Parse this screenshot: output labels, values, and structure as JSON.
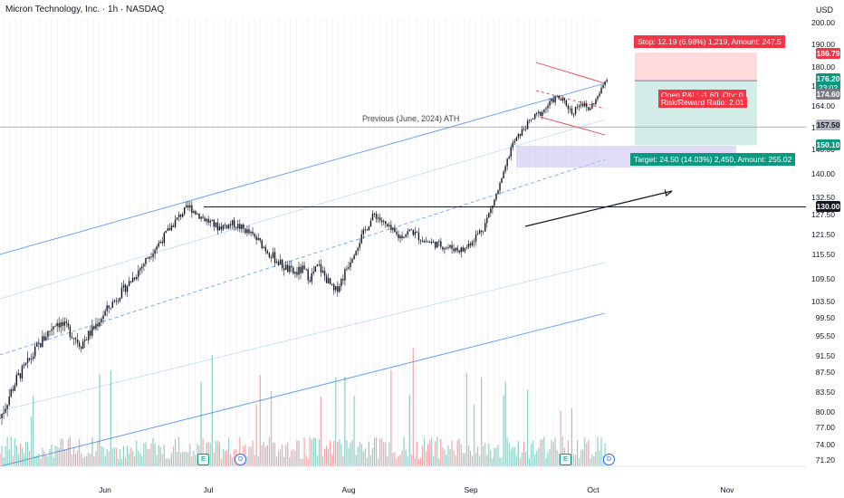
{
  "header": {
    "title": "Micron Technology, Inc. · 1h · NASDAQ",
    "currency": "USD"
  },
  "chart_data": {
    "type": "candlestick",
    "y_axis_ticks": [
      200.0,
      190.0,
      180.0,
      172.0,
      164.0,
      157.0,
      148.0,
      140.0,
      132.5,
      127.5,
      121.5,
      115.5,
      109.5,
      103.5,
      99.5,
      95.5,
      91.5,
      87.5,
      83.5,
      80.0,
      77.0,
      74.0,
      71.2
    ],
    "x_axis_ticks": [
      "Jun",
      "Jul",
      "Aug",
      "Sep",
      "Oct",
      "Nov"
    ],
    "price_path": [
      [
        79,
        0
      ],
      [
        86,
        0.02
      ],
      [
        93,
        0.045
      ],
      [
        99,
        0.07
      ],
      [
        97,
        0.085
      ],
      [
        94,
        0.1
      ],
      [
        97,
        0.115
      ],
      [
        101,
        0.13
      ],
      [
        106,
        0.15
      ],
      [
        110,
        0.165
      ],
      [
        114,
        0.18
      ],
      [
        120,
        0.2
      ],
      [
        125,
        0.215
      ],
      [
        128,
        0.225
      ],
      [
        130,
        0.235
      ],
      [
        127,
        0.25
      ],
      [
        124,
        0.27
      ],
      [
        125,
        0.29
      ],
      [
        123,
        0.305
      ],
      [
        120,
        0.32
      ],
      [
        116,
        0.335
      ],
      [
        113,
        0.35
      ],
      [
        111,
        0.365
      ],
      [
        112,
        0.375
      ],
      [
        110,
        0.385
      ],
      [
        113,
        0.395
      ],
      [
        108,
        0.41
      ],
      [
        106,
        0.415
      ],
      [
        110,
        0.425
      ],
      [
        117,
        0.44
      ],
      [
        124,
        0.455
      ],
      [
        128,
        0.465
      ],
      [
        124,
        0.48
      ],
      [
        121,
        0.495
      ],
      [
        123,
        0.51
      ],
      [
        120,
        0.525
      ],
      [
        119,
        0.54
      ],
      [
        118,
        0.555
      ],
      [
        117,
        0.575
      ],
      [
        124,
        0.6
      ],
      [
        133,
        0.615
      ],
      [
        140,
        0.625
      ],
      [
        150,
        0.635
      ],
      [
        157,
        0.65
      ],
      [
        160,
        0.66
      ],
      [
        163,
        0.675
      ],
      [
        168,
        0.69
      ],
      [
        166,
        0.7
      ],
      [
        162,
        0.71
      ],
      [
        166,
        0.72
      ],
      [
        163,
        0.73
      ],
      [
        167,
        0.74
      ],
      [
        170,
        0.745
      ],
      [
        176.2,
        0.753
      ]
    ],
    "horizontal_levels": [
      {
        "label": "Previous (June, 2024) ATH",
        "price": 157.5
      },
      {
        "label": "130.00",
        "price": 130.0
      }
    ],
    "trade": {
      "stop_label": "Stop: 12.19 (6.98%) 1,219, Amount: 247.5",
      "target_label": "Target: 24.50 (14.03%) 2,450, Amount: 255.02",
      "open_label": "Open P&L: -1.60, Qty: 0",
      "ratio_label": "Risk/Reward Ratio: 2.01",
      "entry": 174.6,
      "stop": 186.79,
      "target": 150.1
    },
    "price_tags": [
      {
        "text": "186.79",
        "color": "#f23645"
      },
      {
        "text": "176.20",
        "sub": "23:02",
        "color": "#089981"
      },
      {
        "text": "174.60",
        "color": "#787b86"
      },
      {
        "text": "157.50",
        "color": "#b2b5be"
      },
      {
        "text": "150.10",
        "color": "#089981"
      },
      {
        "text": "130.00",
        "color": "#131722"
      }
    ],
    "events": [
      {
        "text": "E",
        "color": "#089981"
      },
      {
        "text": "D",
        "color": "#2962ff"
      },
      {
        "text": "E",
        "color": "#089981"
      },
      {
        "text": "D",
        "color": "#2962ff"
      }
    ],
    "colors": {
      "up": "#089981",
      "down": "#f23645",
      "channel": "#5b9cf6",
      "wedge": "#f23645",
      "zone": "#c6c0ee"
    }
  }
}
